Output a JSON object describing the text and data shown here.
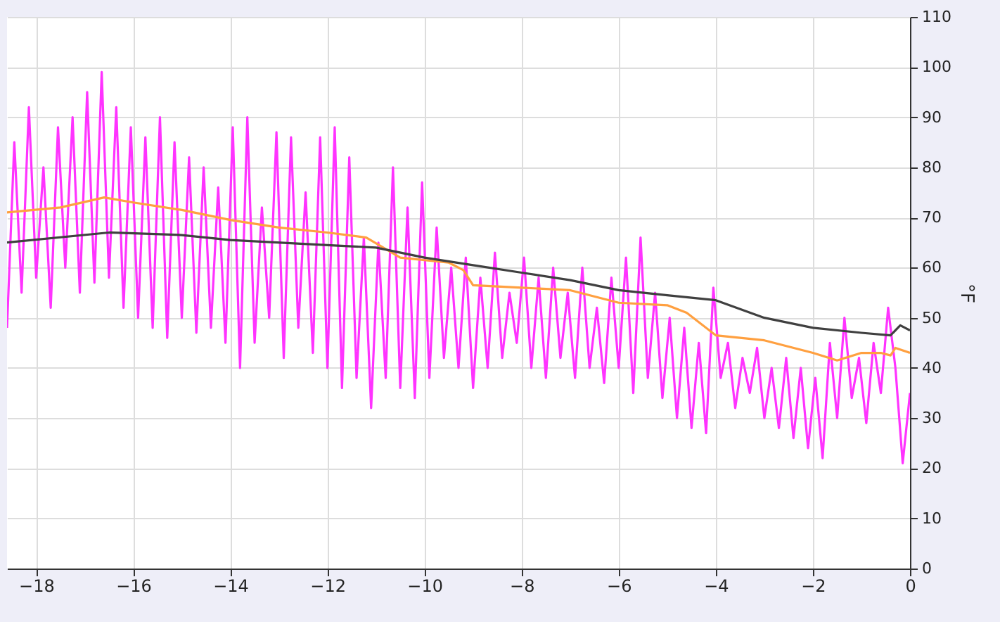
{
  "chart_data": {
    "type": "line",
    "ylabel": "°F",
    "xlim": [
      -18.6,
      0
    ],
    "xticks": [
      -18,
      -16,
      -14,
      -12,
      -10,
      -8,
      -6,
      -4,
      -2,
      0
    ],
    "ylim": [
      0,
      110
    ],
    "yticks": [
      0,
      10,
      20,
      30,
      40,
      50,
      60,
      70,
      80,
      90,
      100,
      110
    ],
    "grid": true,
    "line_style": "solid",
    "marker": "none",
    "series": [
      {
        "color": "#ff33ff",
        "x": [
          -18.6,
          -18.45,
          -18.3,
          -18.15,
          -18.0,
          -17.85,
          -17.7,
          -17.55,
          -17.4,
          -17.25,
          -17.1,
          -16.95,
          -16.8,
          -16.65,
          -16.5,
          -16.35,
          -16.2,
          -16.05,
          -15.9,
          -15.75,
          -15.6,
          -15.45,
          -15.3,
          -15.15,
          -15.0,
          -14.85,
          -14.7,
          -14.55,
          -14.4,
          -14.25,
          -14.1,
          -13.95,
          -13.8,
          -13.65,
          -13.5,
          -13.35,
          -13.2,
          -13.05,
          -12.9,
          -12.75,
          -12.6,
          -12.45,
          -12.3,
          -12.15,
          -12.0,
          -11.85,
          -11.7,
          -11.55,
          -11.4,
          -11.25,
          -11.1,
          -10.95,
          -10.8,
          -10.65,
          -10.5,
          -10.35,
          -10.2,
          -10.05,
          -9.9,
          -9.75,
          -9.6,
          -9.45,
          -9.3,
          -9.15,
          -9.0,
          -8.85,
          -8.7,
          -8.55,
          -8.4,
          -8.25,
          -8.1,
          -7.95,
          -7.8,
          -7.65,
          -7.5,
          -7.35,
          -7.2,
          -7.05,
          -6.9,
          -6.75,
          -6.6,
          -6.45,
          -6.3,
          -6.15,
          -6.0,
          -5.85,
          -5.7,
          -5.55,
          -5.4,
          -5.25,
          -5.1,
          -4.95,
          -4.8,
          -4.65,
          -4.5,
          -4.35,
          -4.2,
          -4.05,
          -3.9,
          -3.75,
          -3.6,
          -3.45,
          -3.3,
          -3.15,
          -3.0,
          -2.85,
          -2.7,
          -2.55,
          -2.4,
          -2.25,
          -2.1,
          -1.95,
          -1.8,
          -1.65,
          -1.5,
          -1.35,
          -1.2,
          -1.05,
          -0.9,
          -0.75,
          -0.6,
          -0.45,
          -0.3,
          -0.15,
          0
        ],
        "values": [
          48,
          85,
          55,
          92,
          58,
          80,
          52,
          88,
          60,
          90,
          55,
          95,
          57,
          99,
          58,
          92,
          52,
          88,
          50,
          86,
          48,
          90,
          46,
          85,
          50,
          82,
          47,
          80,
          48,
          76,
          45,
          88,
          40,
          90,
          45,
          72,
          50,
          87,
          42,
          86,
          48,
          75,
          43,
          86,
          40,
          88,
          36,
          82,
          38,
          66,
          32,
          65,
          38,
          80,
          36,
          72,
          34,
          77,
          38,
          68,
          42,
          60,
          40,
          62,
          36,
          58,
          40,
          63,
          42,
          55,
          45,
          62,
          40,
          58,
          38,
          60,
          42,
          55,
          38,
          60,
          40,
          52,
          37,
          58,
          40,
          62,
          35,
          66,
          38,
          55,
          34,
          50,
          30,
          48,
          28,
          45,
          27,
          56,
          38,
          45,
          32,
          42,
          35,
          44,
          30,
          40,
          28,
          42,
          26,
          40,
          24,
          38,
          22,
          45,
          30,
          50,
          34,
          42,
          29,
          45,
          35,
          52,
          40,
          21,
          35
        ]
      },
      {
        "color": "#ffa040",
        "x": [
          -18.6,
          -17.5,
          -16.6,
          -16,
          -15,
          -14,
          -13,
          -12,
          -11.2,
          -10.5,
          -9.5,
          -9.2,
          -9,
          -8,
          -7,
          -6,
          -5,
          -4.6,
          -4,
          -3,
          -2,
          -1.5,
          -1,
          -0.6,
          -0.4,
          -0.3,
          0
        ],
        "values": [
          71,
          72,
          74,
          73,
          71.5,
          69.5,
          68,
          67,
          66,
          62,
          61,
          59.5,
          56.5,
          56,
          55.5,
          53,
          52.5,
          51,
          46.5,
          45.5,
          43,
          41.5,
          43,
          43,
          42.5,
          44,
          43
        ]
      },
      {
        "color": "#404040",
        "x": [
          -18.6,
          -16.5,
          -15,
          -14,
          -12,
          -11,
          -10,
          -9,
          -8,
          -7,
          -6,
          -5,
          -4,
          -3,
          -2,
          -1,
          -0.4,
          -0.2,
          0
        ],
        "values": [
          65,
          67,
          66.5,
          65.5,
          64.5,
          64,
          62,
          60.5,
          59,
          57.5,
          55.5,
          54.5,
          53.5,
          50,
          48,
          47,
          46.5,
          48.5,
          47.5
        ]
      }
    ]
  }
}
